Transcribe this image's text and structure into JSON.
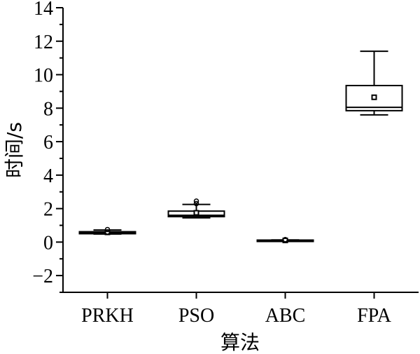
{
  "chart_data": {
    "type": "box",
    "xlabel": "算法",
    "ylabel": "时间/s",
    "ylim": [
      -3,
      14
    ],
    "yticks": [
      -2,
      0,
      2,
      4,
      6,
      8,
      10,
      12,
      14
    ],
    "categories": [
      "PRKH",
      "PSO",
      "ABC",
      "FPA"
    ],
    "boxes": [
      {
        "category": "PRKH",
        "whisker_low": 0.48,
        "q1": 0.5,
        "median": 0.57,
        "q3": 0.62,
        "whisker_high": 0.72,
        "mean": 0.58,
        "outliers": [
          0.75,
          0.6
        ]
      },
      {
        "category": "PSO",
        "whisker_low": 1.45,
        "q1": 1.52,
        "median": 1.6,
        "q3": 1.85,
        "whisker_high": 2.25,
        "mean": 1.75,
        "outliers": [
          2.3,
          2.45
        ]
      },
      {
        "category": "ABC",
        "whisker_low": 0.08,
        "q1": 0.08,
        "median": 0.1,
        "q3": 0.12,
        "whisker_high": 0.13,
        "mean": 0.1,
        "outliers": [
          0.15
        ]
      },
      {
        "category": "FPA",
        "whisker_low": 7.6,
        "q1": 7.85,
        "median": 8.05,
        "q3": 9.35,
        "whisker_high": 11.4,
        "mean": 8.65,
        "outliers": []
      }
    ]
  }
}
